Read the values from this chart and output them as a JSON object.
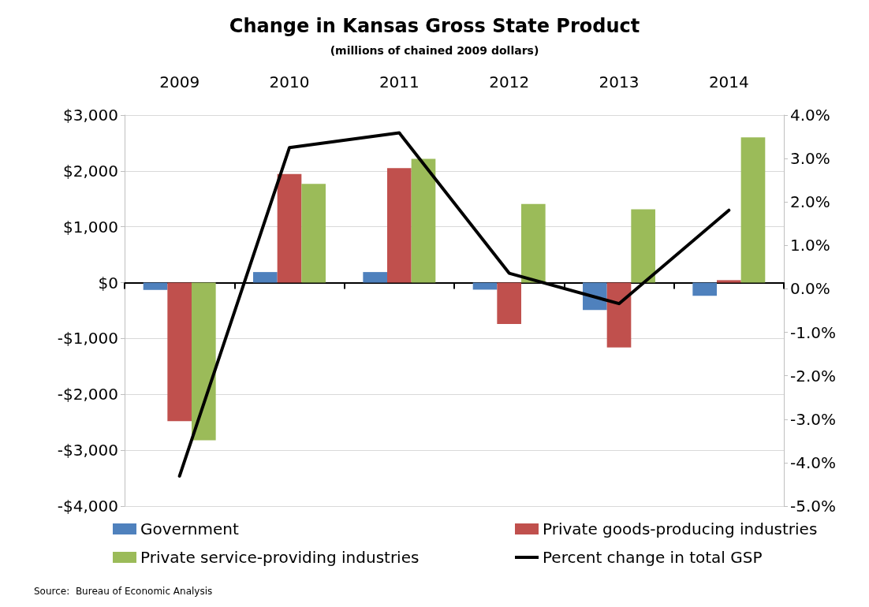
{
  "chart_data": {
    "type": "bar",
    "title": "Change in Kansas Gross State Product",
    "subtitle": "(millions of chained 2009 dollars)",
    "categories": [
      "2009",
      "2010",
      "2011",
      "2012",
      "2013",
      "2014"
    ],
    "series": [
      {
        "name": "Government",
        "color": "#4f81bd",
        "values": [
          -130,
          190,
          190,
          -125,
          -490,
          -235
        ]
      },
      {
        "name": "Private goods-producing industries",
        "color": "#c0504d",
        "values": [
          -2480,
          1945,
          2050,
          -740,
          -1160,
          45
        ]
      },
      {
        "name": "Private service-providing industries",
        "color": "#9bbb59",
        "values": [
          -2820,
          1770,
          2215,
          1410,
          1315,
          2600
        ]
      },
      {
        "name": "Percent change in total GSP",
        "type": "line",
        "axis": "y2",
        "color": "#000000",
        "values": [
          -4.31,
          3.25,
          3.59,
          0.36,
          -0.34,
          1.81
        ]
      }
    ],
    "ylim": [
      -4000,
      3000
    ],
    "yticks": [
      {
        "value": -4000,
        "label": "-$4,000"
      },
      {
        "value": -3000,
        "label": "-$3,000"
      },
      {
        "value": -2000,
        "label": "-$2,000"
      },
      {
        "value": -1000,
        "label": "-$1,000"
      },
      {
        "value": 0,
        "label": "$0"
      },
      {
        "value": 1000,
        "label": "$1,000"
      },
      {
        "value": 2000,
        "label": "$2,000"
      },
      {
        "value": 3000,
        "label": "$3,000"
      }
    ],
    "y2lim": [
      -5,
      4
    ],
    "y2ticks": [
      {
        "value": -5,
        "label": "-5.0%"
      },
      {
        "value": -4,
        "label": "-4.0%"
      },
      {
        "value": -3,
        "label": "-3.0%"
      },
      {
        "value": -2,
        "label": "-2.0%"
      },
      {
        "value": -1,
        "label": "-1.0%"
      },
      {
        "value": 0,
        "label": "0.0%"
      },
      {
        "value": 1,
        "label": "1.0%"
      },
      {
        "value": 2,
        "label": "2.0%"
      },
      {
        "value": 3,
        "label": "3.0%"
      },
      {
        "value": 4,
        "label": "4.0%"
      }
    ],
    "grid": "y",
    "legend": "bottom",
    "marker": "none",
    "line_style": "solid",
    "annotations": [
      "Source:  Bureau of Economic Analysis"
    ]
  }
}
